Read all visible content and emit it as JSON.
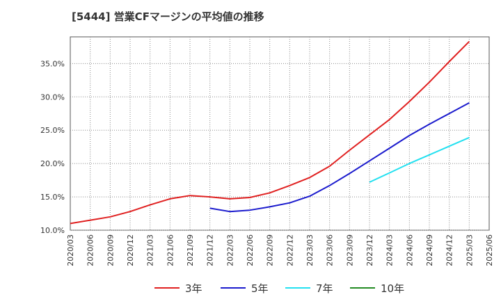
{
  "title": "[5444]  営業CFマージンの平均値の推移",
  "chart_data": {
    "type": "line",
    "title": "[5444]  営業CFマージンの平均値の推移",
    "xlabel": "",
    "ylabel": "",
    "ylim": [
      10.0,
      39.0
    ],
    "yticks": [
      10.0,
      15.0,
      20.0,
      25.0,
      30.0,
      35.0
    ],
    "ytick_labels": [
      "10.0%",
      "15.0%",
      "20.0%",
      "25.0%",
      "30.0%",
      "35.0%"
    ],
    "x_categories": [
      "2020/03",
      "2020/06",
      "2020/09",
      "2020/12",
      "2021/03",
      "2021/06",
      "2021/09",
      "2021/12",
      "2022/03",
      "2022/06",
      "2022/09",
      "2022/12",
      "2023/03",
      "2023/06",
      "2023/09",
      "2023/12",
      "2024/03",
      "2024/06",
      "2024/09",
      "2024/12",
      "2025/03",
      "2025/06"
    ],
    "grid": true,
    "legend_position": "bottom",
    "series": [
      {
        "name": "3年",
        "color": "#e02020",
        "points": [
          [
            "2020/03",
            11.0
          ],
          [
            "2020/06",
            11.5
          ],
          [
            "2020/09",
            12.0
          ],
          [
            "2020/12",
            12.8
          ],
          [
            "2021/03",
            13.8
          ],
          [
            "2021/06",
            14.7
          ],
          [
            "2021/09",
            15.2
          ],
          [
            "2021/12",
            15.0
          ],
          [
            "2022/03",
            14.7
          ],
          [
            "2022/06",
            14.9
          ],
          [
            "2022/09",
            15.6
          ],
          [
            "2022/12",
            16.7
          ],
          [
            "2023/03",
            17.9
          ],
          [
            "2023/06",
            19.6
          ],
          [
            "2023/09",
            22.0
          ],
          [
            "2023/12",
            24.3
          ],
          [
            "2024/03",
            26.6
          ],
          [
            "2024/06",
            29.3
          ],
          [
            "2024/09",
            32.2
          ],
          [
            "2024/12",
            35.3
          ],
          [
            "2025/03",
            38.3
          ]
        ]
      },
      {
        "name": "5年",
        "color": "#1a1acd",
        "points": [
          [
            "2021/12",
            13.3
          ],
          [
            "2022/03",
            12.8
          ],
          [
            "2022/06",
            13.0
          ],
          [
            "2022/09",
            13.5
          ],
          [
            "2022/12",
            14.1
          ],
          [
            "2023/03",
            15.1
          ],
          [
            "2023/06",
            16.7
          ],
          [
            "2023/09",
            18.5
          ],
          [
            "2023/12",
            20.4
          ],
          [
            "2024/03",
            22.3
          ],
          [
            "2024/06",
            24.2
          ],
          [
            "2024/09",
            25.9
          ],
          [
            "2024/12",
            27.5
          ],
          [
            "2025/03",
            29.1
          ]
        ]
      },
      {
        "name": "7年",
        "color": "#22e0f0",
        "points": [
          [
            "2023/12",
            17.2
          ],
          [
            "2024/03",
            18.6
          ],
          [
            "2024/06",
            20.0
          ],
          [
            "2024/09",
            21.3
          ],
          [
            "2024/12",
            22.6
          ],
          [
            "2025/03",
            23.9
          ]
        ]
      },
      {
        "name": "10年",
        "color": "#228b22",
        "points": []
      }
    ]
  }
}
